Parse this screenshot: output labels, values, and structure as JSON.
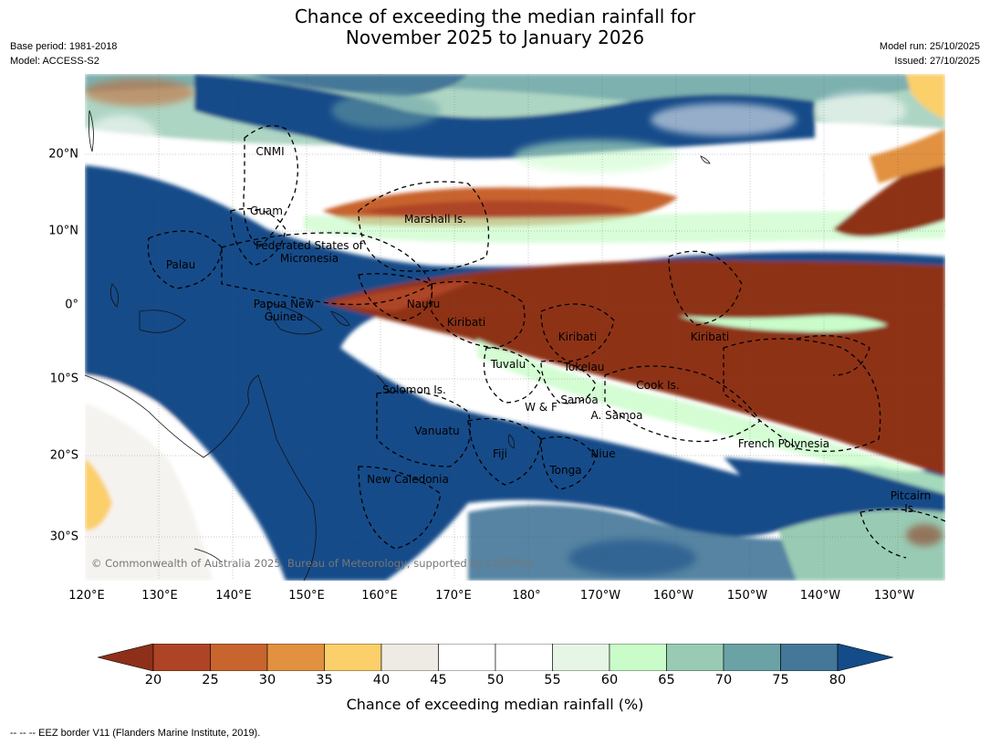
{
  "title": {
    "line1": "Chance of exceeding the median rainfall for",
    "line2": "November 2025 to January 2026"
  },
  "meta_left": {
    "base_period": "Base period: 1981-2018",
    "model": "Model: ACCESS-S2"
  },
  "meta_right": {
    "model_run": "Model run: 25/10/2025",
    "issued": "Issued: 27/10/2025"
  },
  "map": {
    "longitude_labels": [
      "120°E",
      "130°E",
      "140°E",
      "150°E",
      "160°E",
      "170°E",
      "180°",
      "170°W",
      "160°W",
      "150°W",
      "140°W",
      "130°W"
    ],
    "latitude_labels": [
      "20°N",
      "10°N",
      "0°",
      "10°S",
      "20°S",
      "30°S"
    ],
    "regions": [
      "CNMI",
      "Guam",
      "Marshall Is.",
      "Federated States of Micronesia",
      "Palau",
      "Papua New Guinea",
      "Nauru",
      "Kiribati",
      "Kiribati",
      "Kiribati",
      "Tuvalu",
      "Tokelau",
      "Cook Is.",
      "Solomon Is.",
      "W & F",
      "Samoa",
      "A. Samoa",
      "Vanuatu",
      "Fiji",
      "Niue",
      "Tonga",
      "French Polynesia",
      "New Caledonia",
      "Pitcairn Is."
    ],
    "copyright": "© Commonwealth of Australia 2025, Bureau of Meteorology, supported by COSPPac"
  },
  "legend": {
    "ticks": [
      "20",
      "25",
      "30",
      "35",
      "40",
      "45",
      "50",
      "55",
      "60",
      "65",
      "70",
      "75",
      "80"
    ],
    "colors": [
      "#8e3019",
      "#ae4425",
      "#c8642e",
      "#e1913f",
      "#fbcf6a",
      "#eeebe5",
      "#ffffff",
      "#ffffff",
      "#e6f5e5",
      "#c9fcc9",
      "#99cbb4",
      "#6aa2a6",
      "#447798",
      "#134c89"
    ],
    "label": "Chance of exceeding median rainfall (%)"
  },
  "footnote": "--  --  -- EEZ border V11 (Flanders Marine Institute, 2019)."
}
